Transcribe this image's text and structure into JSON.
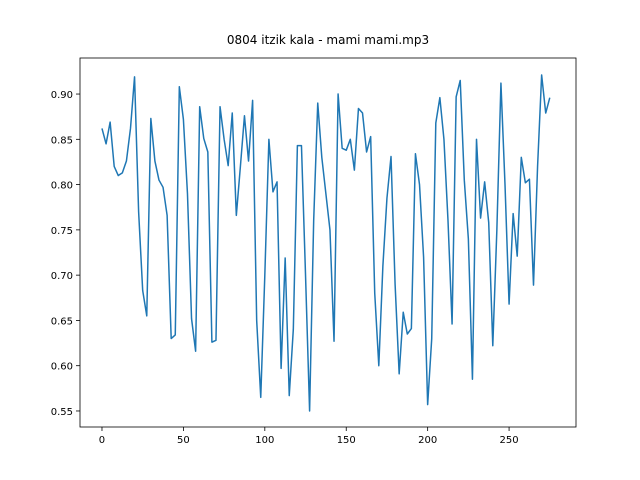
{
  "chart_data": {
    "type": "line",
    "title": "0804 itzik kala - mami mami.mp3",
    "x": [
      0,
      2.5,
      5,
      7.5,
      10,
      12.5,
      15,
      17.5,
      20,
      22.5,
      25,
      27.5,
      30,
      32.5,
      35,
      37.5,
      40,
      42.5,
      45,
      47.5,
      50,
      52.5,
      55,
      57.5,
      60,
      62.5,
      65,
      67.5,
      70,
      72.5,
      75,
      77.5,
      80,
      82.5,
      85,
      87.5,
      90,
      92.5,
      95,
      97.5,
      100,
      102.5,
      105,
      107.5,
      110,
      112.5,
      115,
      117.5,
      120,
      122.5,
      125,
      127.5,
      130,
      132.5,
      135,
      137.5,
      140,
      142.5,
      145,
      147.5,
      150,
      152.5,
      155,
      157.5,
      160,
      162.5,
      165,
      167.5,
      170,
      172.5,
      175,
      177.5,
      180,
      182.5,
      185,
      187.5,
      190,
      192.5,
      195,
      197.5,
      200,
      202.5,
      205,
      207.5,
      210,
      212.5,
      215,
      217.5,
      220,
      222.5,
      225,
      227.5,
      230,
      232.5,
      235,
      237.5,
      240,
      242.5,
      245,
      247.5,
      250,
      252.5,
      255,
      257.5,
      260,
      262.5,
      265,
      267.5,
      270,
      272.5,
      275
    ],
    "series": [
      {
        "color": "#1f77b4",
        "values": [
          0.862,
          0.845,
          0.869,
          0.82,
          0.81,
          0.813,
          0.826,
          0.862,
          0.919,
          0.77,
          0.683,
          0.655,
          0.873,
          0.826,
          0.805,
          0.797,
          0.766,
          0.63,
          0.634,
          0.908,
          0.872,
          0.79,
          0.652,
          0.616,
          0.886,
          0.851,
          0.836,
          0.626,
          0.628,
          0.886,
          0.85,
          0.821,
          0.879,
          0.766,
          0.82,
          0.876,
          0.826,
          0.893,
          0.65,
          0.565,
          0.7,
          0.85,
          0.792,
          0.803,
          0.597,
          0.719,
          0.567,
          0.64,
          0.843,
          0.843,
          0.7,
          0.55,
          0.76,
          0.89,
          0.83,
          0.79,
          0.75,
          0.627,
          0.9,
          0.84,
          0.838,
          0.85,
          0.816,
          0.884,
          0.879,
          0.836,
          0.853,
          0.68,
          0.6,
          0.71,
          0.785,
          0.831,
          0.69,
          0.591,
          0.659,
          0.635,
          0.641,
          0.834,
          0.8,
          0.72,
          0.557,
          0.63,
          0.868,
          0.896,
          0.85,
          0.76,
          0.646,
          0.897,
          0.915,
          0.805,
          0.74,
          0.585,
          0.85,
          0.763,
          0.803,
          0.758,
          0.622,
          0.75,
          0.912,
          0.8,
          0.668,
          0.768,
          0.721,
          0.83,
          0.802,
          0.806,
          0.689,
          0.82,
          0.921,
          0.879,
          0.896
        ]
      }
    ],
    "xlim": [
      -13.5,
      291.1
    ],
    "ylim": [
      0.5323,
      0.9398
    ],
    "xticks": [
      0,
      50,
      100,
      150,
      200,
      250
    ],
    "yticks": [
      {
        "value": 0.55,
        "label": "0.55"
      },
      {
        "value": 0.6,
        "label": "0.60"
      },
      {
        "value": 0.65,
        "label": "0.65"
      },
      {
        "value": 0.7,
        "label": "0.70"
      },
      {
        "value": 0.75,
        "label": "0.75"
      },
      {
        "value": 0.8,
        "label": "0.80"
      },
      {
        "value": 0.85,
        "label": "0.85"
      },
      {
        "value": 0.9,
        "label": "0.90"
      }
    ]
  }
}
